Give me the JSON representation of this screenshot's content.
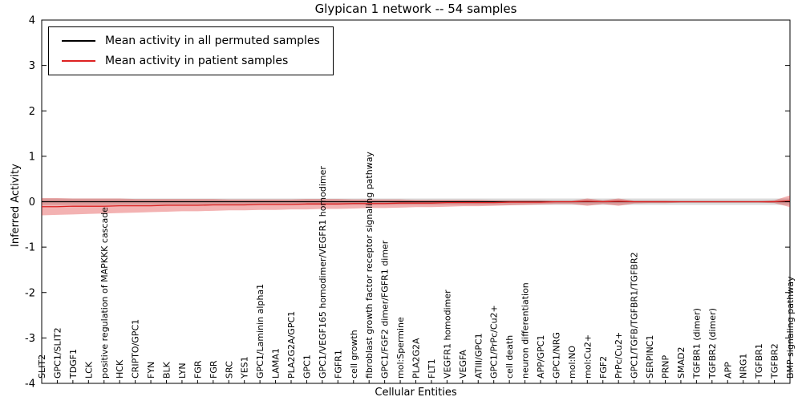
{
  "title": "Glypican 1 network -- 54 samples",
  "axes": {
    "ylabel": "Inferred Activity",
    "xlabel": "Cellular Entities"
  },
  "legend": {
    "entries": [
      {
        "label": "Mean activity in all permuted samples",
        "color": "#000000"
      },
      {
        "label": "Mean activity in patient samples",
        "color": "#dd2222"
      }
    ],
    "position": "upper left"
  },
  "chart_data": {
    "type": "line",
    "title": "Glypican 1 network -- 54 samples",
    "xlabel": "Cellular Entities",
    "ylabel": "Inferred Activity",
    "ylim": [
      -4,
      4
    ],
    "yticks": [
      -4,
      -3,
      -2,
      -1,
      0,
      1,
      2,
      3,
      4
    ],
    "grid": false,
    "categories": [
      "SLIT2",
      "GPC1/SLIT2",
      "TDGF1",
      "LCK",
      "positive regulation of MAPKKK cascade",
      "HCK",
      "CRIPTO/GPC1",
      "FYN",
      "BLK",
      "LYN",
      "FGR",
      "FGR",
      "SRC",
      "YES1",
      "GPC1/Laminin alpha1",
      "LAMA1",
      "PLA2G2A/GPC1",
      "GPC1",
      "GPC1/VEGF165 homodimer/VEGFR1 homodimer",
      "FGFR1",
      "cell growth",
      "fibroblast growth factor receptor signaling pathway",
      "GPC1/FGF2 dimer/FGFR1 dimer",
      "mol:Spermine",
      "PLA2G2A",
      "FLT1",
      "VEGFR1 homodimer",
      "VEGFA",
      "ATIII/GPC1",
      "GPC1/PrPc/Cu2+",
      "cell death",
      "neuron differentiation",
      "APP/GPC1",
      "GPC1/NRG",
      "mol:NO",
      "mol:Cu2+",
      "FGF2",
      "PrPc/Cu2+",
      "GPC1/TGFB/TGFBR1/TGFBR2",
      "SERPINC1",
      "PRNP",
      "SMAD2",
      "TGFBR1 (dimer)",
      "TGFBR2 (dimer)",
      "APP",
      "NRG1",
      "TGFBR1",
      "TGFBR2",
      "BMP signaling pathway"
    ],
    "series": [
      {
        "name": "Mean activity in all permuted samples",
        "color": "#000000",
        "dashed_zero_line": true,
        "values": 0
      },
      {
        "name": "Mean activity in patient samples",
        "color": "#dd2222",
        "values": [
          -0.11,
          -0.11,
          -0.1,
          -0.1,
          -0.1,
          -0.09,
          -0.09,
          -0.09,
          -0.08,
          -0.08,
          -0.08,
          -0.07,
          -0.07,
          -0.07,
          -0.06,
          -0.06,
          -0.06,
          -0.05,
          -0.05,
          -0.05,
          -0.04,
          -0.04,
          -0.04,
          -0.03,
          -0.03,
          -0.03,
          -0.02,
          -0.02,
          -0.02,
          -0.02,
          -0.01,
          -0.01,
          -0.01,
          0.0,
          0.0,
          0.01,
          0.0,
          0.01,
          0.0,
          0.0,
          0.0,
          0.0,
          0.0,
          0.0,
          0.0,
          0.0,
          0.0,
          0.0,
          0.02
        ]
      }
    ],
    "bands": [
      {
        "name": "permuted-band",
        "color": "rgba(110,110,110,0.25)",
        "lower": -0.07,
        "upper": 0.07
      },
      {
        "name": "patient-band",
        "color": "rgba(221,34,34,0.35)",
        "lower": [
          -0.3,
          -0.29,
          -0.28,
          -0.27,
          -0.26,
          -0.25,
          -0.24,
          -0.23,
          -0.22,
          -0.21,
          -0.21,
          -0.2,
          -0.19,
          -0.19,
          -0.18,
          -0.18,
          -0.17,
          -0.17,
          -0.16,
          -0.16,
          -0.15,
          -0.14,
          -0.14,
          -0.13,
          -0.12,
          -0.12,
          -0.11,
          -0.1,
          -0.1,
          -0.09,
          -0.08,
          -0.07,
          -0.06,
          -0.05,
          -0.05,
          -0.09,
          -0.05,
          -0.09,
          -0.04,
          -0.03,
          -0.03,
          -0.02,
          -0.02,
          -0.02,
          -0.02,
          -0.02,
          -0.02,
          -0.03,
          -0.12
        ],
        "upper": [
          0.08,
          0.08,
          0.07,
          0.07,
          0.07,
          0.07,
          0.06,
          0.06,
          0.06,
          0.06,
          0.06,
          0.06,
          0.05,
          0.05,
          0.05,
          0.05,
          0.05,
          0.06,
          0.06,
          0.06,
          0.05,
          0.05,
          0.05,
          0.05,
          0.04,
          0.04,
          0.04,
          0.04,
          0.04,
          0.03,
          0.03,
          0.03,
          0.03,
          0.02,
          0.02,
          0.07,
          0.03,
          0.07,
          0.02,
          0.02,
          0.02,
          0.01,
          0.01,
          0.01,
          0.01,
          0.01,
          0.01,
          0.03,
          0.14
        ]
      }
    ]
  }
}
